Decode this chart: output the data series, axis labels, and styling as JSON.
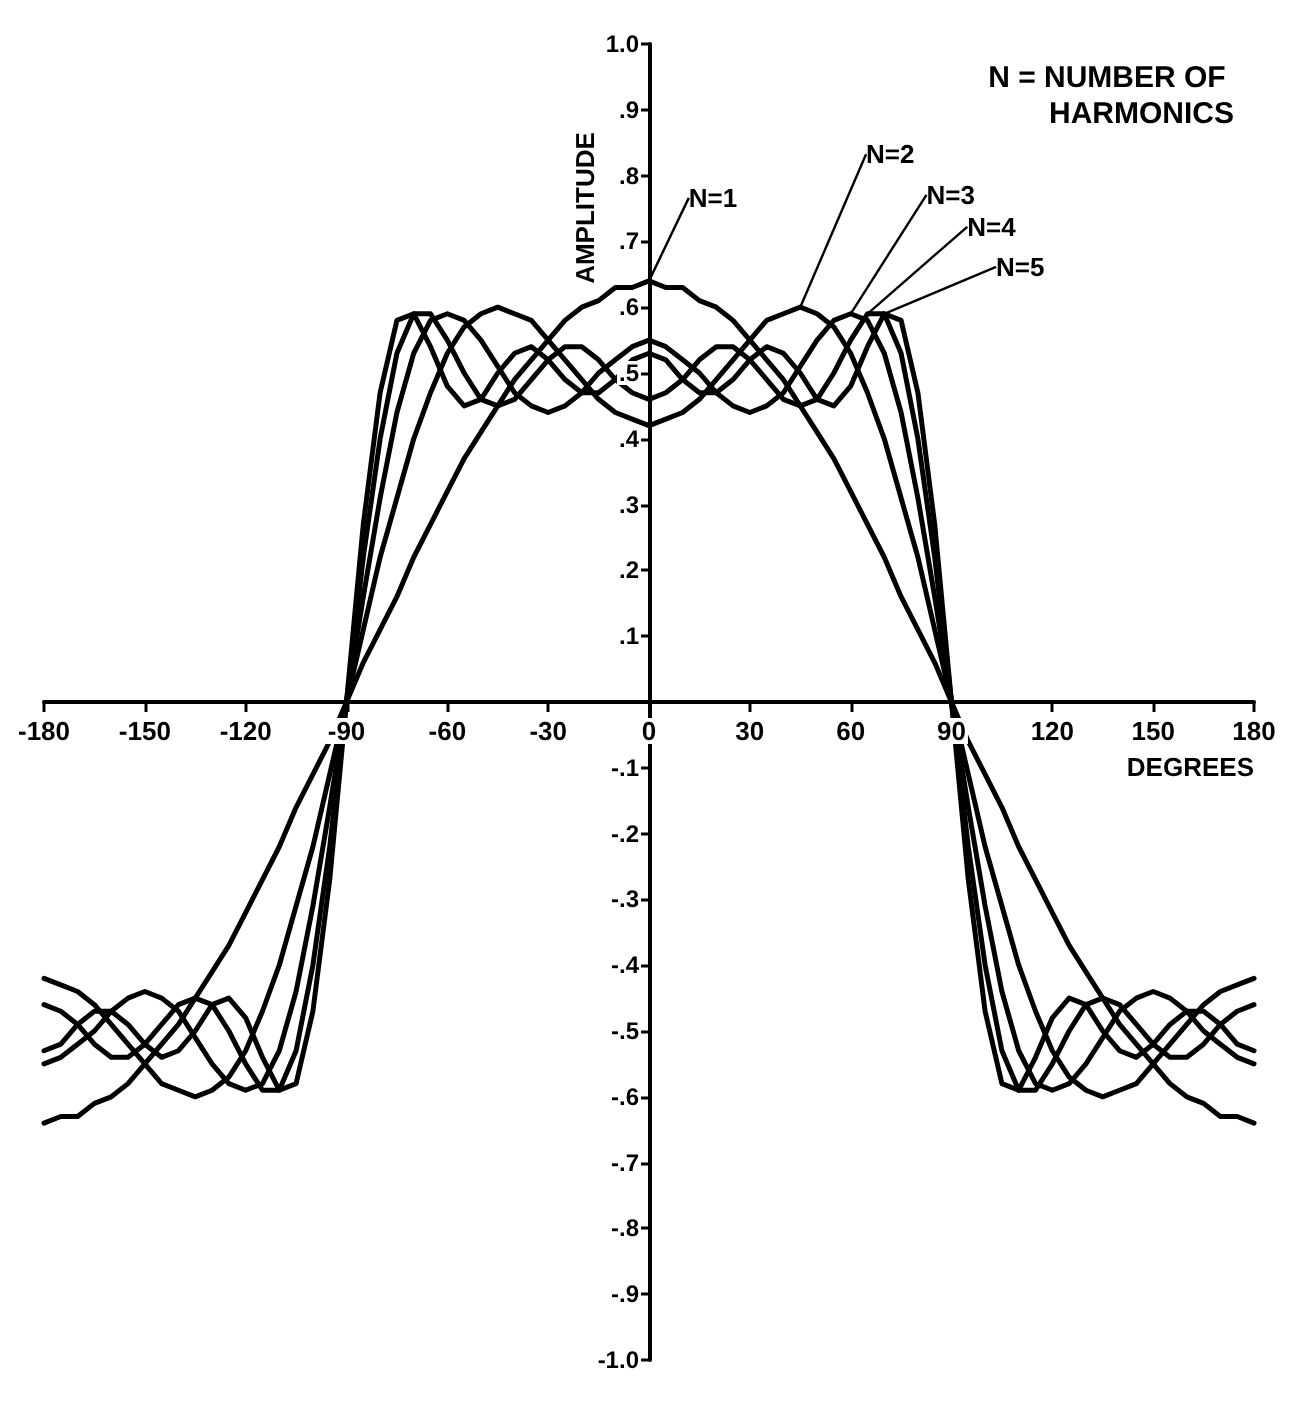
{
  "chart_data": {
    "type": "line",
    "xlabel": "DEGREES",
    "ylabel": "AMPLITUDE",
    "annotations": [
      "N = NUMBER OF HARMONICS"
    ],
    "x": [
      -180,
      -175,
      -170,
      -165,
      -160,
      -155,
      -150,
      -145,
      -140,
      -135,
      -130,
      -125,
      -120,
      -115,
      -110,
      -105,
      -100,
      -95,
      -90,
      -85,
      -80,
      -75,
      -70,
      -65,
      -60,
      -55,
      -50,
      -45,
      -40,
      -35,
      -30,
      -25,
      -20,
      -15,
      -10,
      -5,
      0,
      5,
      10,
      15,
      20,
      25,
      30,
      35,
      40,
      45,
      50,
      55,
      60,
      65,
      70,
      75,
      80,
      85,
      90,
      95,
      100,
      105,
      110,
      115,
      120,
      125,
      130,
      135,
      140,
      145,
      150,
      155,
      160,
      165,
      170,
      175,
      180
    ],
    "series": [
      {
        "name": "N=1",
        "color": "#000000",
        "values": [
          -0.64,
          -0.63,
          -0.63,
          -0.61,
          -0.6,
          -0.58,
          -0.55,
          -0.52,
          -0.49,
          -0.45,
          -0.41,
          -0.37,
          -0.32,
          -0.27,
          -0.22,
          -0.16,
          -0.11,
          -0.06,
          0,
          0.06,
          0.11,
          0.16,
          0.22,
          0.27,
          0.32,
          0.37,
          0.41,
          0.45,
          0.49,
          0.52,
          0.55,
          0.58,
          0.6,
          0.61,
          0.63,
          0.63,
          0.64,
          0.63,
          0.63,
          0.61,
          0.6,
          0.58,
          0.55,
          0.52,
          0.49,
          0.45,
          0.41,
          0.37,
          0.32,
          0.27,
          0.22,
          0.16,
          0.11,
          0.06,
          0,
          -0.06,
          -0.11,
          -0.16,
          -0.22,
          -0.27,
          -0.32,
          -0.37,
          -0.41,
          -0.45,
          -0.49,
          -0.52,
          -0.55,
          -0.58,
          -0.6,
          -0.61,
          -0.63,
          -0.63,
          -0.64
        ]
      },
      {
        "name": "N=2",
        "color": "#000000",
        "values": [
          -0.42,
          -0.43,
          -0.44,
          -0.46,
          -0.49,
          -0.52,
          -0.55,
          -0.58,
          -0.59,
          -0.6,
          -0.59,
          -0.57,
          -0.53,
          -0.47,
          -0.4,
          -0.31,
          -0.22,
          -0.11,
          0,
          0.11,
          0.22,
          0.31,
          0.4,
          0.47,
          0.53,
          0.57,
          0.59,
          0.6,
          0.59,
          0.58,
          0.55,
          0.52,
          0.49,
          0.46,
          0.44,
          0.43,
          0.42,
          0.43,
          0.44,
          0.46,
          0.49,
          0.52,
          0.55,
          0.58,
          0.59,
          0.6,
          0.59,
          0.57,
          0.53,
          0.47,
          0.4,
          0.31,
          0.22,
          0.11,
          0,
          -0.11,
          -0.22,
          -0.31,
          -0.4,
          -0.47,
          -0.53,
          -0.57,
          -0.59,
          -0.6,
          -0.59,
          -0.58,
          -0.55,
          -0.52,
          -0.49,
          -0.46,
          -0.44,
          -0.43,
          -0.42
        ]
      },
      {
        "name": "N=3",
        "color": "#000000",
        "values": [
          -0.55,
          -0.54,
          -0.52,
          -0.5,
          -0.47,
          -0.45,
          -0.44,
          -0.45,
          -0.47,
          -0.51,
          -0.55,
          -0.58,
          -0.59,
          -0.58,
          -0.53,
          -0.44,
          -0.31,
          -0.16,
          0,
          0.16,
          0.31,
          0.44,
          0.53,
          0.58,
          0.59,
          0.58,
          0.55,
          0.51,
          0.47,
          0.45,
          0.44,
          0.45,
          0.47,
          0.5,
          0.52,
          0.54,
          0.55,
          0.54,
          0.52,
          0.5,
          0.47,
          0.45,
          0.44,
          0.45,
          0.47,
          0.51,
          0.55,
          0.58,
          0.59,
          0.58,
          0.53,
          0.44,
          0.31,
          0.16,
          0,
          -0.16,
          -0.31,
          -0.44,
          -0.53,
          -0.58,
          -0.59,
          -0.58,
          -0.55,
          -0.51,
          -0.47,
          -0.45,
          -0.44,
          -0.45,
          -0.47,
          -0.5,
          -0.52,
          -0.54,
          -0.55
        ]
      },
      {
        "name": "N=4",
        "color": "#000000",
        "values": [
          -0.46,
          -0.47,
          -0.49,
          -0.52,
          -0.54,
          -0.54,
          -0.52,
          -0.49,
          -0.46,
          -0.45,
          -0.46,
          -0.5,
          -0.55,
          -0.59,
          -0.59,
          -0.53,
          -0.4,
          -0.22,
          0,
          0.22,
          0.4,
          0.53,
          0.59,
          0.59,
          0.55,
          0.5,
          0.46,
          0.45,
          0.46,
          0.49,
          0.52,
          0.54,
          0.54,
          0.52,
          0.49,
          0.47,
          0.46,
          0.47,
          0.49,
          0.52,
          0.54,
          0.54,
          0.52,
          0.49,
          0.46,
          0.45,
          0.46,
          0.5,
          0.55,
          0.59,
          0.59,
          0.53,
          0.4,
          0.22,
          0,
          -0.22,
          -0.4,
          -0.53,
          -0.59,
          -0.59,
          -0.55,
          -0.5,
          -0.46,
          -0.45,
          -0.46,
          -0.49,
          -0.52,
          -0.54,
          -0.54,
          -0.52,
          -0.49,
          -0.47,
          -0.46
        ]
      },
      {
        "name": "N=5",
        "color": "#000000",
        "values": [
          -0.53,
          -0.52,
          -0.49,
          -0.47,
          -0.47,
          -0.49,
          -0.52,
          -0.54,
          -0.53,
          -0.5,
          -0.46,
          -0.45,
          -0.48,
          -0.54,
          -0.59,
          -0.58,
          -0.47,
          -0.27,
          0,
          0.27,
          0.47,
          0.58,
          0.59,
          0.54,
          0.48,
          0.45,
          0.46,
          0.5,
          0.53,
          0.54,
          0.52,
          0.49,
          0.47,
          0.47,
          0.49,
          0.52,
          0.53,
          0.52,
          0.49,
          0.47,
          0.47,
          0.49,
          0.52,
          0.54,
          0.53,
          0.5,
          0.46,
          0.45,
          0.48,
          0.54,
          0.59,
          0.58,
          0.47,
          0.27,
          0,
          -0.27,
          -0.47,
          -0.58,
          -0.59,
          -0.54,
          -0.48,
          -0.45,
          -0.46,
          -0.5,
          -0.53,
          -0.54,
          -0.52,
          -0.49,
          -0.47,
          -0.47,
          -0.49,
          -0.52,
          -0.53
        ]
      }
    ],
    "xlim": [
      -180,
      180
    ],
    "xticks": [
      -180,
      -150,
      -120,
      -90,
      -60,
      -30,
      0,
      30,
      60,
      90,
      120,
      150,
      180
    ],
    "ylim": [
      -1,
      1
    ],
    "yticks": [
      {
        "value": 1,
        "label": "1.0"
      },
      {
        "value": 0.9,
        "label": ".9"
      },
      {
        "value": 0.8,
        "label": ".8"
      },
      {
        "value": 0.7,
        "label": ".7"
      },
      {
        "value": 0.6,
        "label": ".6"
      },
      {
        "value": 0.5,
        "label": ".5"
      },
      {
        "value": 0.4,
        "label": ".4"
      },
      {
        "value": 0.3,
        "label": ".3"
      },
      {
        "value": 0.2,
        "label": ".2"
      },
      {
        "value": 0.1,
        "label": ".1"
      },
      {
        "value": 0,
        "label": null
      },
      {
        "value": -0.1,
        "label": "-.1"
      },
      {
        "value": -0.2,
        "label": "-.2"
      },
      {
        "value": -0.3,
        "label": "-.3"
      },
      {
        "value": -0.4,
        "label": "-.4"
      },
      {
        "value": -0.5,
        "label": "-.5"
      },
      {
        "value": -0.6,
        "label": "-.6"
      },
      {
        "value": -0.7,
        "label": "-.7"
      },
      {
        "value": -0.8,
        "label": "-.8"
      },
      {
        "value": -0.9,
        "label": "-.9"
      },
      {
        "value": -1,
        "label": "-1.0"
      }
    ],
    "grid": false,
    "legend": false,
    "marker": "none",
    "line_style": "solid"
  }
}
